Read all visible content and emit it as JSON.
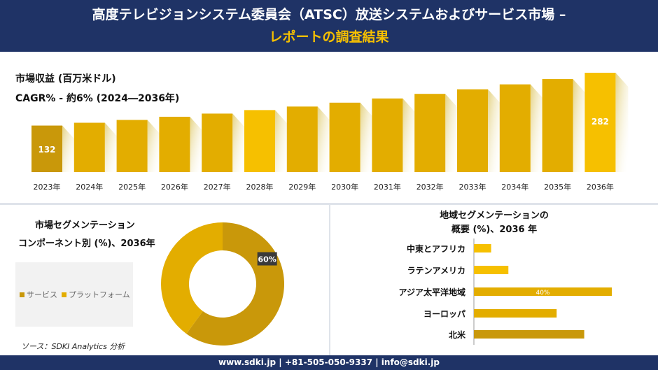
{
  "header": {
    "title_line1": "高度テレビジョンシステム委員会（ATSC）放送システムおよびサービス市場 –",
    "title_line2": "レポートの調査結果"
  },
  "revenue": {
    "label": "市場収益 (百万米ドル)",
    "cagr": "CAGR% - 約6% (2024―2036年)"
  },
  "segment": {
    "title_line1": "市場セグメンテーション",
    "title_line2": "コンポーネント別 (%)、2036年",
    "source": "ソース：SDKI Analytics 分析"
  },
  "region": {
    "title_line1": "地域セグメンテーションの",
    "title_line2": "概要 (%)、2036 年"
  },
  "footer": {
    "text": "www.sdki.jp | +81-505-050-9337 | info@sdki.jp"
  },
  "colors": {
    "navy": "#1f3366",
    "gold_dark": "#c9980a",
    "gold": "#e3ad00",
    "gold_bright": "#f6c000"
  },
  "chart_data": [
    {
      "type": "bar",
      "title": "市場収益 (百万米ドル)",
      "categories": [
        "2023年",
        "2024年",
        "2025年",
        "2026年",
        "2027年",
        "2028年",
        "2029年",
        "2030年",
        "2031年",
        "2032年",
        "2033年",
        "2034年",
        "2035年",
        "2036年"
      ],
      "values": [
        132,
        140,
        148,
        157,
        166,
        176,
        186,
        197,
        209,
        222,
        235,
        249,
        264,
        282
      ],
      "data_labels": {
        "0": "132",
        "13": "282"
      },
      "grid": false
    },
    {
      "type": "pie",
      "title": "コンポーネント別 (%)、2036年",
      "series": [
        {
          "name": "サービス",
          "value": 60,
          "label": "60%"
        },
        {
          "name": "プラットフォーム",
          "value": 40
        }
      ],
      "legend": "left"
    },
    {
      "type": "bar",
      "orientation": "horizontal",
      "title": "地域セグメンテーションの概要 (%)、2036 年",
      "categories": [
        "中東とアフリカ",
        "ラテンアメリカ",
        "アジア太平洋地域",
        "ヨーロッパ",
        "北米"
      ],
      "values": [
        5,
        10,
        40,
        24,
        32
      ],
      "data_labels": {
        "2": "40%"
      }
    }
  ]
}
